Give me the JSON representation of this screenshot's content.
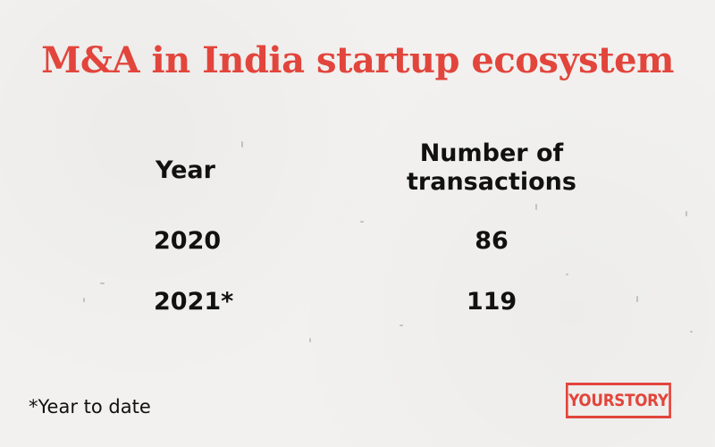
{
  "title": "M&A in India startup ecosystem",
  "chart_data": {
    "type": "table",
    "columns": [
      "Year",
      "Number of transactions"
    ],
    "column_header_lines": {
      "year": [
        "Year"
      ],
      "transactions": [
        "Number of",
        "transactions"
      ]
    },
    "rows": [
      {
        "year": "2020",
        "transactions": 86
      },
      {
        "year": "2021*",
        "transactions": 119
      }
    ]
  },
  "footnote": "*Year to date",
  "logo_text": "YOURSTORY",
  "colors": {
    "accent": "#e2453c",
    "text": "#111111",
    "background": "#f2f1ef"
  }
}
